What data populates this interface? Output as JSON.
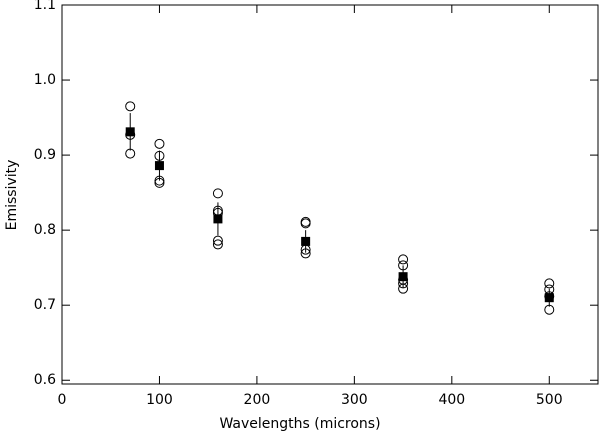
{
  "chart_data": {
    "type": "scatter",
    "xlabel": "Wavelengths (microns)",
    "ylabel": "Emissivity",
    "xlim": [
      0,
      550
    ],
    "xticks": [
      0,
      100,
      200,
      300,
      400,
      500
    ],
    "ylim": [
      0.595,
      1.1
    ],
    "yticks": [
      0.6,
      0.7,
      0.8,
      0.9,
      {
        "value": 1,
        "label": "1.0"
      },
      1.1
    ],
    "series": [
      {
        "marker": "circle",
        "color": "#000000",
        "x": [
          70,
          70,
          70,
          100,
          100,
          100,
          100,
          160,
          160,
          160,
          160,
          160,
          250,
          250,
          250,
          250,
          350,
          350,
          350,
          350,
          350,
          500,
          500,
          500,
          500
        ],
        "values": [
          0.965,
          0.927,
          0.902,
          0.915,
          0.899,
          0.866,
          0.863,
          0.849,
          0.826,
          0.823,
          0.786,
          0.781,
          0.811,
          0.809,
          0.774,
          0.769,
          0.761,
          0.753,
          0.734,
          0.729,
          0.722,
          0.729,
          0.721,
          0.712,
          0.694
        ]
      },
      {
        "marker": "square",
        "color": "#000000",
        "x": [
          70,
          100,
          160,
          250,
          350,
          500
        ],
        "values": [
          0.931,
          0.886,
          0.815,
          0.785,
          0.738,
          0.71
        ],
        "errors": [
          0.025,
          0.02,
          0.022,
          0.015,
          0.015,
          0.012
        ]
      }
    ]
  }
}
